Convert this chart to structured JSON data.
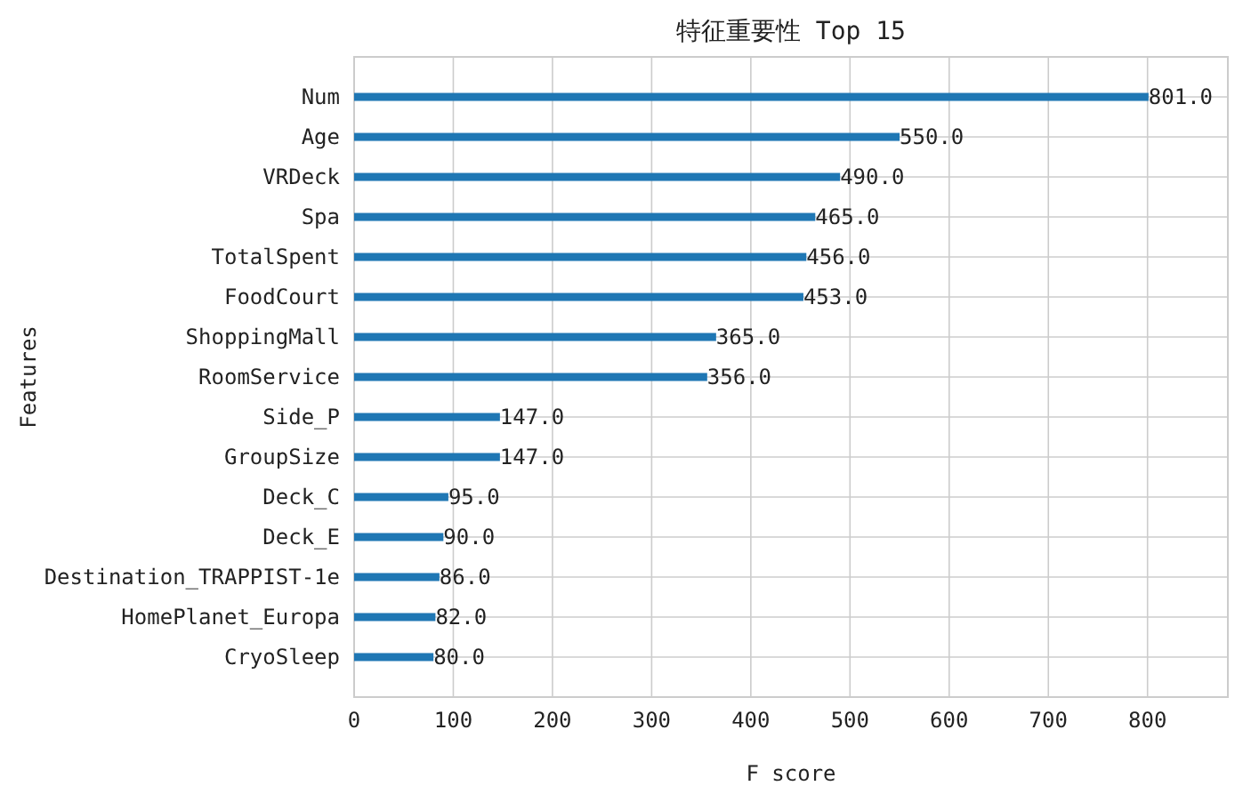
{
  "chart_data": {
    "type": "bar",
    "orientation": "horizontal",
    "title": "特征重要性 Top 15",
    "xlabel": "F score",
    "ylabel": "Features",
    "categories": [
      "Num",
      "Age",
      "VRDeck",
      "Spa",
      "TotalSpent",
      "FoodCourt",
      "ShoppingMall",
      "RoomService",
      "Side_P",
      "GroupSize",
      "Deck_C",
      "Deck_E",
      "Destination_TRAPPIST-1e",
      "HomePlanet_Europa",
      "CryoSleep"
    ],
    "values": [
      801,
      550,
      490,
      465,
      456,
      453,
      365,
      356,
      147,
      147,
      95,
      90,
      86,
      82,
      80
    ],
    "value_labels": [
      "801.0",
      "550.0",
      "490.0",
      "465.0",
      "456.0",
      "453.0",
      "365.0",
      "356.0",
      "147.0",
      "147.0",
      "95.0",
      "90.0",
      "86.0",
      "82.0",
      "80.0"
    ],
    "color": "#1f77b4",
    "xlim": [
      0,
      881
    ],
    "xticks": [
      0,
      100,
      200,
      300,
      400,
      500,
      600,
      700,
      800
    ],
    "grid": true
  }
}
